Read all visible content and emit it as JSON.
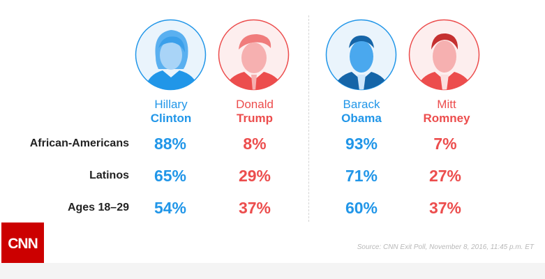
{
  "chart_data": {
    "type": "table",
    "groups": [
      {
        "candidates": [
          {
            "first": "Hillary",
            "last": "Clinton",
            "color": "#2196e8",
            "values": [
              "88%",
              "65%",
              "54%"
            ]
          },
          {
            "first": "Donald",
            "last": "Trump",
            "color": "#ec4d4d",
            "values": [
              "8%",
              "29%",
              "37%"
            ]
          }
        ]
      },
      {
        "candidates": [
          {
            "first": "Barack",
            "last": "Obama",
            "color": "#2196e8",
            "values": [
              "93%",
              "71%",
              "60%"
            ]
          },
          {
            "first": "Mitt",
            "last": "Romney",
            "color": "#ec4d4d",
            "values": [
              "7%",
              "27%",
              "37%"
            ]
          }
        ]
      }
    ],
    "rows": [
      "African-Americans",
      "Latinos",
      "Ages 18–29"
    ]
  },
  "source": "Source: CNN Exit Poll, November 8, 2016, 11:45 p.m. ET",
  "logo_text": "CNN",
  "colors": {
    "democrat": "#2196e8",
    "republican": "#ec4d4d",
    "logo_bg": "#cc0000"
  }
}
